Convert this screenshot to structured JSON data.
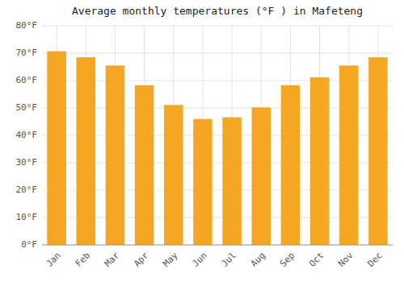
{
  "chart_data": {
    "type": "bar",
    "title": "Average monthly temperatures (°F ) in Mafeteng",
    "categories": [
      "Jan",
      "Feb",
      "Mar",
      "Apr",
      "May",
      "Jun",
      "Jul",
      "Aug",
      "Sep",
      "Oct",
      "Nov",
      "Dec"
    ],
    "values": [
      70.7,
      68.5,
      65.5,
      58.3,
      51.1,
      46.0,
      46.6,
      50.2,
      58.3,
      61.2,
      65.5,
      68.5
    ],
    "color": "#F5A623",
    "ylim": [
      0,
      80
    ],
    "yticks": [
      {
        "value": 0,
        "label": "0°F"
      },
      {
        "value": 10,
        "label": "10°F"
      },
      {
        "value": 20,
        "label": "20°F"
      },
      {
        "value": 30,
        "label": "30°F"
      },
      {
        "value": 40,
        "label": "40°F"
      },
      {
        "value": 50,
        "label": "50°F"
      },
      {
        "value": 60,
        "label": "60°F"
      },
      {
        "value": 70,
        "label": "70°F"
      },
      {
        "value": 80,
        "label": "80°F"
      }
    ],
    "grid": true
  }
}
